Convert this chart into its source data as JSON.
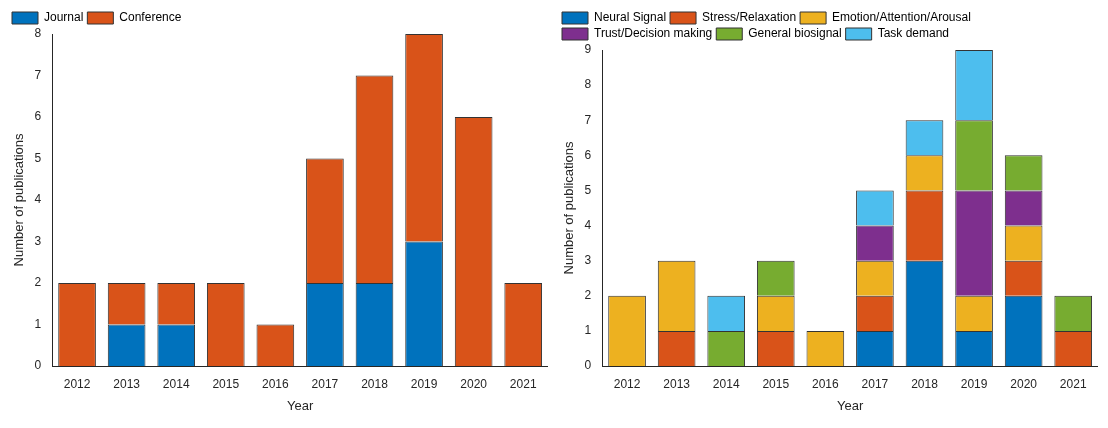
{
  "chart_data": [
    {
      "type": "bar",
      "stacked": true,
      "xlabel": "Year",
      "ylabel": "Number of publications",
      "categories": [
        "2012",
        "2013",
        "2014",
        "2015",
        "2016",
        "2017",
        "2018",
        "2019",
        "2020",
        "2021"
      ],
      "series": [
        {
          "name": "Journal",
          "color": "#0072bd",
          "values": [
            0,
            1,
            1,
            0,
            0,
            2,
            2,
            3,
            0,
            0
          ]
        },
        {
          "name": "Conference",
          "color": "#d95319",
          "values": [
            2,
            1,
            1,
            2,
            1,
            3,
            5,
            5,
            6,
            2
          ]
        }
      ],
      "ylim": [
        0,
        8
      ],
      "yticks": [
        0,
        1,
        2,
        3,
        4,
        5,
        6,
        7,
        8
      ],
      "grid": false,
      "legend": "top left"
    },
    {
      "type": "bar",
      "stacked": true,
      "xlabel": "Year",
      "ylabel": "Number of publications",
      "categories": [
        "2012",
        "2013",
        "2014",
        "2015",
        "2016",
        "2017",
        "2018",
        "2019",
        "2020",
        "2021"
      ],
      "series": [
        {
          "name": "Neural Signal",
          "color": "#0072bd",
          "values": [
            0,
            0,
            0,
            0,
            0,
            1,
            3,
            1,
            2,
            0
          ]
        },
        {
          "name": "Stress/Relaxation",
          "color": "#d95319",
          "values": [
            0,
            1,
            0,
            1,
            0,
            1,
            2,
            0,
            1,
            1
          ]
        },
        {
          "name": "Emotion/Attention/Arousal",
          "color": "#edb120",
          "values": [
            2,
            2,
            0,
            1,
            1,
            1,
            1,
            1,
            1,
            0
          ]
        },
        {
          "name": "Trust/Decision making",
          "color": "#7e2f8e",
          "values": [
            0,
            0,
            0,
            0,
            0,
            1,
            0,
            3,
            1,
            0
          ]
        },
        {
          "name": "General biosignal",
          "color": "#77ac30",
          "values": [
            0,
            0,
            1,
            1,
            0,
            0,
            0,
            2,
            1,
            1
          ]
        },
        {
          "name": "Task demand",
          "color": "#4dbeee",
          "values": [
            0,
            0,
            1,
            0,
            0,
            1,
            1,
            2,
            0,
            0
          ]
        }
      ],
      "ylim": [
        0,
        9
      ],
      "yticks": [
        0,
        1,
        2,
        3,
        4,
        5,
        6,
        7,
        8,
        9
      ],
      "grid": false,
      "legend": "top left"
    }
  ]
}
